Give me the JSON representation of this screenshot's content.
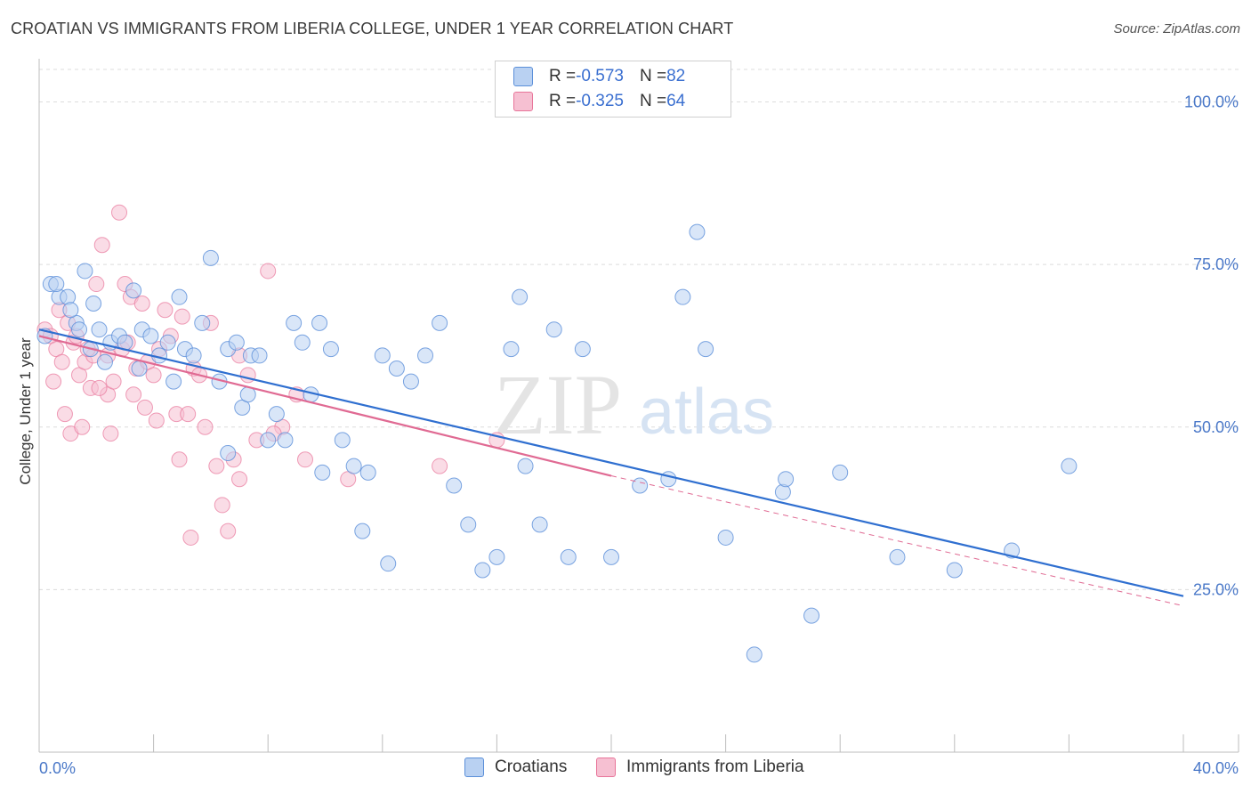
{
  "title": "CROATIAN VS IMMIGRANTS FROM LIBERIA COLLEGE, UNDER 1 YEAR CORRELATION CHART",
  "source": "Source: ZipAtlas.com",
  "watermark": {
    "zip": "ZIP",
    "atlas": "atlas"
  },
  "legend_top": [
    {
      "r_label": "R = ",
      "r_value": "-0.573",
      "n_label": "N = ",
      "n_value": "82"
    },
    {
      "r_label": "R = ",
      "r_value": "-0.325",
      "n_label": "N = ",
      "n_value": "64"
    }
  ],
  "colors": {
    "croatians": "#5b8fd9",
    "liberia": "#e8759a",
    "croatians_fill": "#b9d1f2",
    "liberia_fill": "#f6c0d2",
    "tick_text": "#4a78c8"
  },
  "chart_data": {
    "type": "scatter",
    "title": "CROATIAN VS IMMIGRANTS FROM LIBERIA COLLEGE, UNDER 1 YEAR CORRELATION CHART",
    "xlabel": "",
    "ylabel": "College, Under 1 year",
    "xlim": [
      0,
      40
    ],
    "ylim": [
      0,
      105
    ],
    "x_tick_labels": [
      "0.0%",
      "40.0%"
    ],
    "y_ticks": [
      25,
      50,
      75,
      100
    ],
    "y_tick_labels": [
      "25.0%",
      "50.0%",
      "75.0%",
      "100.0%"
    ],
    "series": [
      {
        "name": "Croatians",
        "trend": {
          "x0": 0,
          "y0": 65.0,
          "x1": 40,
          "y1": 24.0,
          "dashed_from": null
        },
        "points": [
          [
            0.2,
            64
          ],
          [
            0.4,
            72
          ],
          [
            0.7,
            70
          ],
          [
            1.0,
            70
          ],
          [
            1.3,
            66
          ],
          [
            1.6,
            74
          ],
          [
            1.9,
            69
          ],
          [
            0.6,
            72
          ],
          [
            1.1,
            68
          ],
          [
            1.4,
            65
          ],
          [
            1.8,
            62
          ],
          [
            2.1,
            65
          ],
          [
            2.5,
            63
          ],
          [
            2.8,
            64
          ],
          [
            3.0,
            63
          ],
          [
            3.3,
            71
          ],
          [
            3.6,
            65
          ],
          [
            3.9,
            64
          ],
          [
            4.2,
            61
          ],
          [
            4.5,
            63
          ],
          [
            4.9,
            70
          ],
          [
            5.1,
            62
          ],
          [
            5.4,
            61
          ],
          [
            5.7,
            66
          ],
          [
            6.0,
            76
          ],
          [
            6.3,
            57
          ],
          [
            6.6,
            62
          ],
          [
            6.9,
            63
          ],
          [
            7.1,
            53
          ],
          [
            7.4,
            61
          ],
          [
            7.7,
            61
          ],
          [
            8.0,
            48
          ],
          [
            8.3,
            52
          ],
          [
            8.6,
            48
          ],
          [
            8.9,
            66
          ],
          [
            9.2,
            63
          ],
          [
            9.5,
            55
          ],
          [
            9.8,
            66
          ],
          [
            10.2,
            62
          ],
          [
            10.6,
            48
          ],
          [
            11.0,
            44
          ],
          [
            11.5,
            43
          ],
          [
            12.0,
            61
          ],
          [
            12.5,
            59
          ],
          [
            13.0,
            57
          ],
          [
            13.5,
            61
          ],
          [
            14.0,
            66
          ],
          [
            14.5,
            41
          ],
          [
            15.0,
            35
          ],
          [
            15.5,
            28
          ],
          [
            16.0,
            30
          ],
          [
            16.5,
            62
          ],
          [
            17.0,
            44
          ],
          [
            17.5,
            35
          ],
          [
            18.0,
            65
          ],
          [
            18.5,
            30
          ],
          [
            19.0,
            62
          ],
          [
            20.0,
            30
          ],
          [
            21.0,
            41
          ],
          [
            22.0,
            42
          ],
          [
            23.0,
            80
          ],
          [
            24.0,
            33
          ],
          [
            25.0,
            15
          ],
          [
            26.0,
            40
          ],
          [
            27.0,
            21
          ],
          [
            28.0,
            43
          ],
          [
            30.0,
            30
          ],
          [
            32.0,
            28
          ],
          [
            34.0,
            31
          ],
          [
            36.0,
            44
          ],
          [
            3.5,
            59
          ],
          [
            4.7,
            57
          ],
          [
            6.6,
            46
          ],
          [
            7.3,
            55
          ],
          [
            9.9,
            43
          ],
          [
            11.3,
            34
          ],
          [
            12.2,
            29
          ],
          [
            16.8,
            70
          ],
          [
            22.5,
            70
          ],
          [
            23.3,
            62
          ],
          [
            26.1,
            42
          ],
          [
            2.3,
            60
          ]
        ]
      },
      {
        "name": "Immigrants from Liberia",
        "trend": {
          "x0": 0,
          "y0": 64.0,
          "x1": 20,
          "y1": 42.5,
          "dashed_from": 20,
          "dashed_x1": 40,
          "dashed_y1": 22.5
        },
        "points": [
          [
            0.2,
            65
          ],
          [
            0.4,
            64
          ],
          [
            0.6,
            62
          ],
          [
            0.8,
            60
          ],
          [
            1.0,
            66
          ],
          [
            1.2,
            63
          ],
          [
            1.4,
            58
          ],
          [
            1.6,
            60
          ],
          [
            1.8,
            56
          ],
          [
            2.0,
            72
          ],
          [
            2.2,
            78
          ],
          [
            2.4,
            55
          ],
          [
            2.6,
            57
          ],
          [
            2.8,
            83
          ],
          [
            3.0,
            72
          ],
          [
            3.2,
            70
          ],
          [
            3.4,
            59
          ],
          [
            3.6,
            69
          ],
          [
            3.8,
            60
          ],
          [
            4.0,
            58
          ],
          [
            4.2,
            62
          ],
          [
            4.4,
            68
          ],
          [
            4.6,
            64
          ],
          [
            4.8,
            52
          ],
          [
            5.0,
            67
          ],
          [
            5.2,
            52
          ],
          [
            5.4,
            59
          ],
          [
            5.6,
            58
          ],
          [
            5.8,
            50
          ],
          [
            6.0,
            66
          ],
          [
            6.2,
            44
          ],
          [
            6.4,
            38
          ],
          [
            6.6,
            34
          ],
          [
            6.8,
            45
          ],
          [
            7.0,
            61
          ],
          [
            7.3,
            58
          ],
          [
            7.6,
            48
          ],
          [
            8.0,
            74
          ],
          [
            8.5,
            50
          ],
          [
            9.0,
            55
          ],
          [
            0.5,
            57
          ],
          [
            0.9,
            52
          ],
          [
            1.1,
            49
          ],
          [
            1.5,
            50
          ],
          [
            1.9,
            61
          ],
          [
            2.1,
            56
          ],
          [
            2.5,
            49
          ],
          [
            2.9,
            62
          ],
          [
            3.3,
            55
          ],
          [
            3.7,
            53
          ],
          [
            4.1,
            51
          ],
          [
            4.9,
            45
          ],
          [
            5.3,
            33
          ],
          [
            7.0,
            42
          ],
          [
            8.2,
            49
          ],
          [
            9.3,
            45
          ],
          [
            10.8,
            42
          ],
          [
            14.0,
            44
          ],
          [
            16.0,
            48
          ],
          [
            0.7,
            68
          ],
          [
            1.3,
            64
          ],
          [
            1.7,
            62
          ],
          [
            2.4,
            61
          ],
          [
            3.1,
            63
          ]
        ]
      }
    ]
  },
  "bottom_legend": [
    {
      "label": "Croatians"
    },
    {
      "label": "Immigrants from Liberia"
    }
  ]
}
